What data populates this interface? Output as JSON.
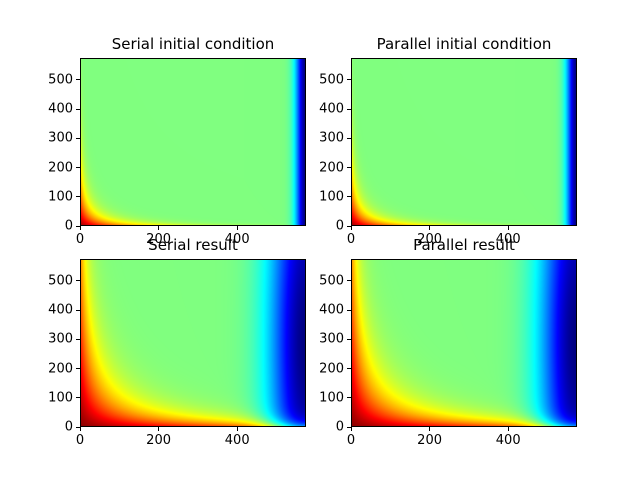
{
  "figure": {
    "colormap": "jet"
  },
  "chart_data": [
    {
      "type": "heatmap",
      "title": "Serial initial condition",
      "field": "initial",
      "xlim": [
        0,
        575
      ],
      "ylim": [
        0,
        575
      ],
      "xticks": [
        0,
        200,
        400
      ],
      "yticks": [
        0,
        100,
        200,
        300,
        400,
        500
      ],
      "xlabel": "",
      "ylabel": ""
    },
    {
      "type": "heatmap",
      "title": "Parallel initial condition",
      "field": "initial",
      "xlim": [
        0,
        575
      ],
      "ylim": [
        0,
        575
      ],
      "xticks": [
        0,
        200,
        400
      ],
      "yticks": [
        0,
        100,
        200,
        300,
        400,
        500
      ],
      "xlabel": "",
      "ylabel": ""
    },
    {
      "type": "heatmap",
      "title": "Serial result",
      "field": "result",
      "xlim": [
        0,
        575
      ],
      "ylim": [
        0,
        575
      ],
      "xticks": [
        0,
        200,
        400
      ],
      "yticks": [
        0,
        100,
        200,
        300,
        400,
        500
      ],
      "xlabel": "",
      "ylabel": ""
    },
    {
      "type": "heatmap",
      "title": "Parallel result",
      "field": "result",
      "xlim": [
        0,
        575
      ],
      "ylim": [
        0,
        575
      ],
      "xticks": [
        0,
        200,
        400
      ],
      "yticks": [
        0,
        100,
        200,
        300,
        400,
        500
      ],
      "xlabel": "",
      "ylabel": ""
    }
  ]
}
